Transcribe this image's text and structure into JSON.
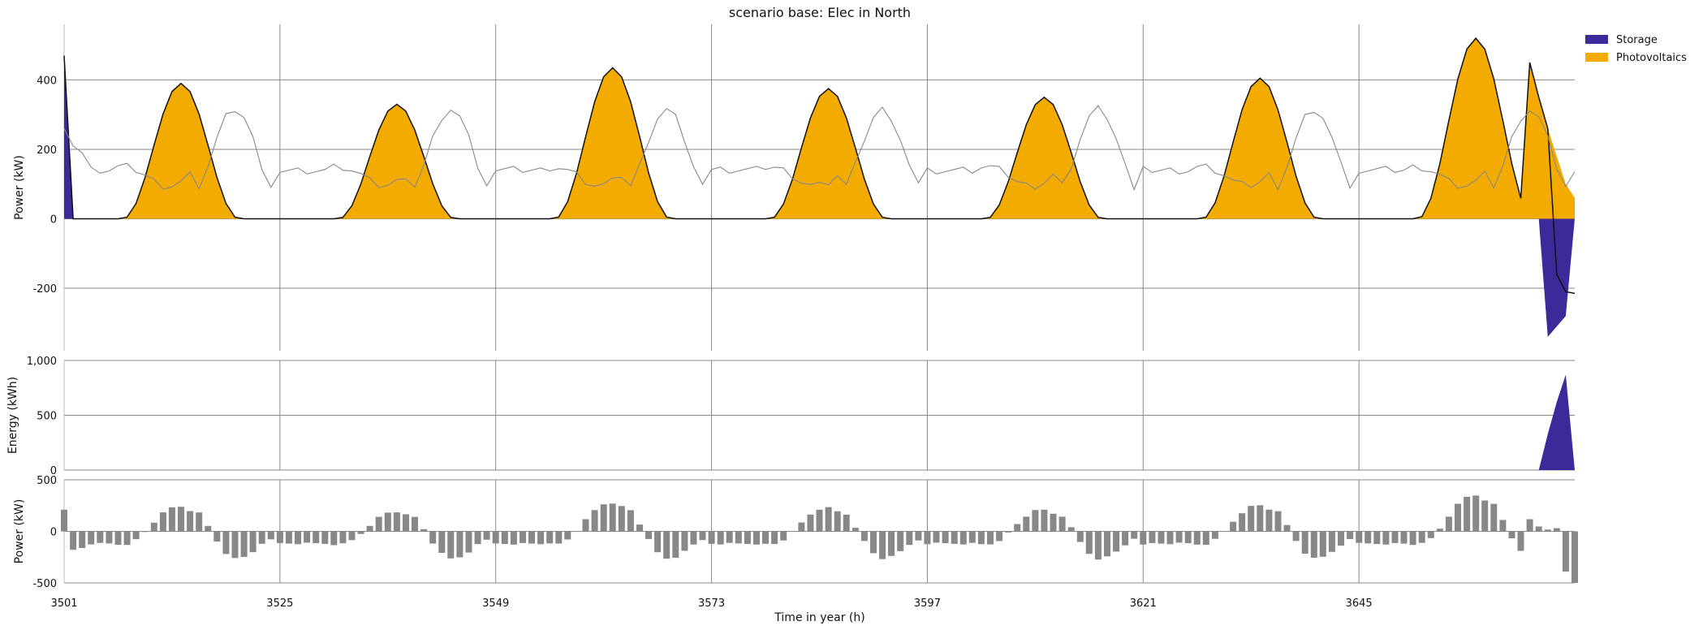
{
  "chart_data": {
    "type": "area",
    "title": "scenario base: Elec in North",
    "xlabel": "Time in year (h)",
    "xlim": [
      3501,
      3669
    ],
    "x_ticks": [
      3501,
      3525,
      3549,
      3573,
      3597,
      3621,
      3645
    ],
    "colors": {
      "storage": "#3b2a99",
      "photovoltaics": "#f4ab00",
      "balance": "#888888",
      "grid": "#888888"
    },
    "legend": {
      "placement": "top-right",
      "entries": [
        {
          "label": "Storage",
          "color": "#3b2a99"
        },
        {
          "label": "Photovoltaics",
          "color": "#f4ab00"
        }
      ]
    },
    "panels": [
      {
        "id": "power",
        "ylabel": "Power (kW)",
        "ylim": [
          -380,
          560
        ],
        "y_ticks": [
          -200,
          0,
          200,
          400
        ],
        "y_tick_labels": [
          "-200",
          "0",
          "200",
          "400"
        ],
        "pv_peaks": [
          390,
          330,
          435,
          375,
          350,
          405,
          520
        ],
        "pv_last_values": [
          450,
          350,
          260,
          180,
          100,
          60
        ],
        "storage": [
          {
            "x": 3501,
            "y": 470
          },
          {
            "x": 3502,
            "y": 0
          },
          {
            "x": 3665,
            "y": 0
          },
          {
            "x": 3666,
            "y": -340
          },
          {
            "x": 3667,
            "y": -310
          },
          {
            "x": 3668,
            "y": -280
          }
        ],
        "net_line_end": [
          -160,
          -210,
          -215
        ],
        "demand_profile": {
          "night": 140,
          "morning_peak": 150,
          "midday_min": 95,
          "evening_peak": 315
        }
      },
      {
        "id": "energy",
        "ylabel": "Energy (kWh)",
        "ylim": [
          0,
          1000
        ],
        "y_ticks": [
          0,
          500,
          1000
        ],
        "y_tick_labels": [
          "0",
          "500",
          "1,000"
        ],
        "storage_energy": [
          {
            "x": 3665,
            "y": 0
          },
          {
            "x": 3666,
            "y": 330
          },
          {
            "x": 3667,
            "y": 620
          },
          {
            "x": 3668,
            "y": 870
          }
        ]
      },
      {
        "id": "balance",
        "ylabel": "Power (kW)",
        "ylim": [
          -500,
          500
        ],
        "y_ticks": [
          -500,
          0,
          500
        ],
        "y_tick_labels": [
          "-500",
          "0",
          "500"
        ],
        "first_value": 210,
        "last_values": [
          -390,
          -500
        ]
      }
    ]
  }
}
